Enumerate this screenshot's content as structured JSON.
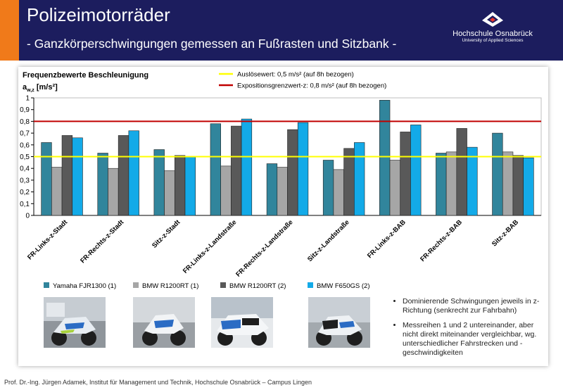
{
  "header": {
    "title": "Polizeimotorräder",
    "subtitle": "- Ganzkörperschwingungen gemessen an Fußrasten und Sitzbank -",
    "logo_name": "Hochschule Osnabrück",
    "logo_sub": "University of Applied Sciences"
  },
  "chart_data": {
    "type": "bar",
    "title": "Frequenzbewerte Beschleunigung",
    "ylabel": "a",
    "ylabel_sub": "w,z",
    "ylabel_unit": " [m/s²]",
    "ylim": [
      0,
      1
    ],
    "yticks": [
      "0",
      "0,1",
      "0,2",
      "0,3",
      "0,4",
      "0,5",
      "0,6",
      "0,7",
      "0,8",
      "0,9",
      "1"
    ],
    "grid": false,
    "legend_position": "bottom",
    "categories": [
      "FR-Links-z-Stadt",
      "FR-Rechts-z-Stadt",
      "Sitz-z-Stadt",
      "FR-Links-z-Landstraße",
      "FR-Rechts-z-Landstraße",
      "Sitz-z-Landstraße",
      "FR-Links-z-BAB",
      "FR-Rechts-z-BAB",
      "Sitz-z-BAB"
    ],
    "series": [
      {
        "name": "Yamaha FJR1300 (1)",
        "color": "#31859c",
        "values": [
          0.62,
          0.53,
          0.56,
          0.78,
          0.44,
          0.47,
          0.98,
          0.53,
          0.7
        ]
      },
      {
        "name": "BMW R1200RT (1)",
        "color": "#a6a6a6",
        "values": [
          0.41,
          0.4,
          0.38,
          0.42,
          0.41,
          0.39,
          0.47,
          0.54,
          0.54
        ]
      },
      {
        "name": "BMW R1200RT (2)",
        "color": "#595959",
        "values": [
          0.68,
          0.68,
          0.51,
          0.76,
          0.73,
          0.57,
          0.71,
          0.74,
          0.51
        ]
      },
      {
        "name": "BMW F650GS (2)",
        "color": "#13aae8",
        "values": [
          0.66,
          0.72,
          0.5,
          0.82,
          0.79,
          0.62,
          0.77,
          0.58,
          0.49
        ]
      }
    ],
    "reference_lines": [
      {
        "label": "Auslösewert: 0,5 m/s² (auf 8h bezogen)",
        "value": 0.5,
        "color": "#ffff00"
      },
      {
        "label": "Expositionsgrenzwert-z: 0,8 m/s² (auf 8h bezogen)",
        "value": 0.8,
        "color": "#c00000"
      }
    ]
  },
  "notes": [
    "Dominierende Schwingungen jeweils in z-Richtung (senkrecht zur Fahrbahn)",
    "Messreihen 1 und 2 untereinander, aber nicht direkt miteinander vergleichbar, wg. unterschiedlicher Fahrstrecken und -geschwindigkeiten"
  ],
  "photos": [
    "yamaha-fjr1300-photo",
    "bmw-r1200rt-photo-1",
    "bmw-r1200rt-photo-2",
    "bmw-f650gs-photo"
  ],
  "footer": "Prof. Dr.-Ing. Jürgen Adamek,  Institut für Management und Technik, Hochschule Osnabrück – Campus Lingen"
}
